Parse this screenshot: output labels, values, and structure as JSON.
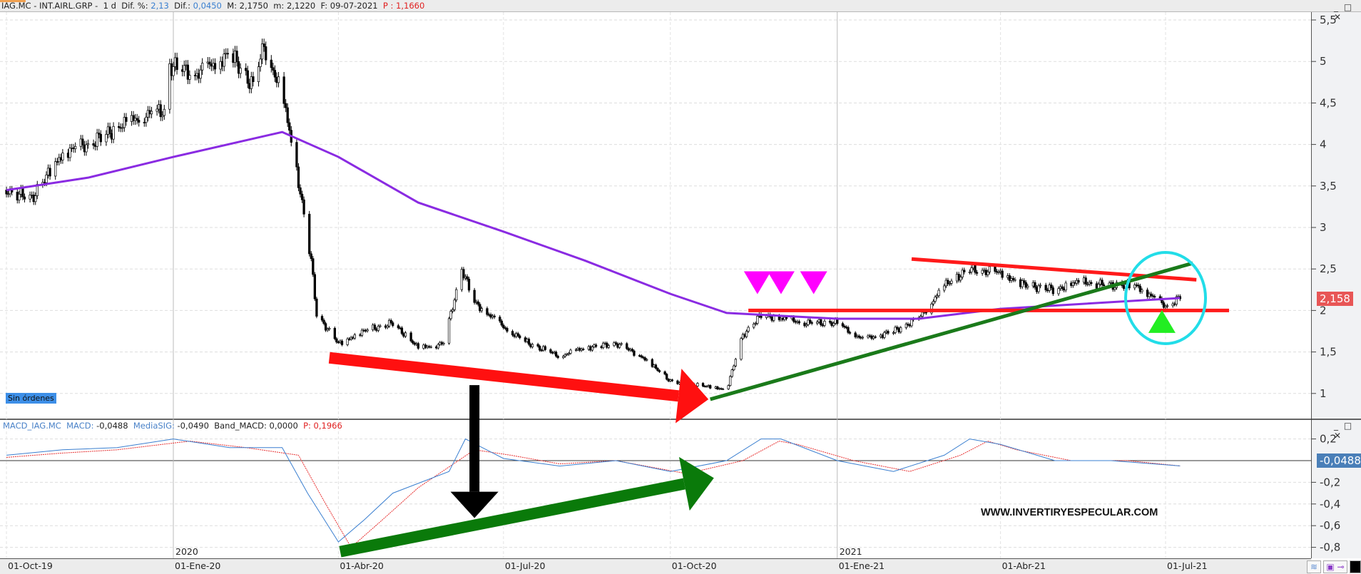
{
  "header": {
    "symbol": "IAG.MC - INT.AIRL.GRP -",
    "period": "1 d",
    "dif_pct_label": "Dif. %:",
    "dif_pct": "2,13",
    "dif_label": "Dif.:",
    "dif": "0,0450",
    "max_label": "M:",
    "max": "2,1750",
    "min_label": "m:",
    "min": "2,1220",
    "date_label": "F:",
    "date": "09-07-2021",
    "p_label": "P :",
    "p": "1,1660"
  },
  "price_badge": "2,158",
  "macd_badge": "-0,0488",
  "orders_button": "Sin órdenes",
  "watermark": "WWW.INVERTIRYESPECULAR.COM",
  "macd_header": {
    "name": "MACD_IAG.MC",
    "macd_label": "MACD:",
    "macd": "-0,0488",
    "sig_label": "MediaSIG:",
    "sig": "-0,0490",
    "band_label": "Band_MACD:",
    "band": "0,0000",
    "p_label": "P:",
    "p": "0,1966"
  },
  "window_controls": "_ □ ✕",
  "colors": {
    "ma": "#8a2be2",
    "macd": "#3a7fd0",
    "signal": "#e83030",
    "support": "#1a7a1a",
    "resistance": "#ff1a1a",
    "highlight": "#22dde8",
    "pattern": "#ff00ff",
    "buy": "#22ee22"
  },
  "chart_data": [
    {
      "type": "candlestick",
      "panel": "price",
      "ylim": [
        0.75,
        5.6
      ],
      "yticks": [
        "5,5",
        "5",
        "4,5",
        "4",
        "3,5",
        "3",
        "2,5",
        "2",
        "1,5",
        "1"
      ],
      "ytick_values": [
        5.5,
        5,
        4.5,
        4,
        3.5,
        3,
        2.5,
        2,
        1.5,
        1
      ],
      "close": [
        [
          "2019-10-01",
          3.45
        ],
        [
          "2019-10-15",
          3.35
        ],
        [
          "2019-11-01",
          3.9
        ],
        [
          "2019-11-15",
          4.0
        ],
        [
          "2019-12-01",
          4.2
        ],
        [
          "2019-12-15",
          4.35
        ],
        [
          "2019-12-27",
          4.4
        ],
        [
          "2019-12-30",
          4.95
        ],
        [
          "2020-01-15",
          4.85
        ],
        [
          "2020-02-01",
          5.1
        ],
        [
          "2020-02-14",
          4.7
        ],
        [
          "2020-02-20",
          5.2
        ],
        [
          "2020-03-01",
          4.6
        ],
        [
          "2020-03-06",
          4.05
        ],
        [
          "2020-03-12",
          3.3
        ],
        [
          "2020-03-17",
          2.6
        ],
        [
          "2020-03-20",
          1.95
        ],
        [
          "2020-04-01",
          1.6
        ],
        [
          "2020-04-15",
          1.75
        ],
        [
          "2020-05-01",
          1.85
        ],
        [
          "2020-05-15",
          1.55
        ],
        [
          "2020-05-29",
          1.6
        ],
        [
          "2020-06-08",
          2.5
        ],
        [
          "2020-06-15",
          2.1
        ],
        [
          "2020-07-01",
          1.8
        ],
        [
          "2020-07-15",
          1.6
        ],
        [
          "2020-08-01",
          1.45
        ],
        [
          "2020-08-15",
          1.55
        ],
        [
          "2020-09-01",
          1.6
        ],
        [
          "2020-09-15",
          1.45
        ],
        [
          "2020-10-01",
          1.15
        ],
        [
          "2020-10-15",
          1.1
        ],
        [
          "2020-11-01",
          1.05
        ],
        [
          "2020-11-10",
          1.7
        ],
        [
          "2020-11-20",
          1.95
        ],
        [
          "2020-12-01",
          1.9
        ],
        [
          "2020-12-15",
          1.85
        ],
        [
          "2021-01-01",
          1.85
        ],
        [
          "2021-01-15",
          1.65
        ],
        [
          "2021-02-01",
          1.75
        ],
        [
          "2021-02-15",
          1.9
        ],
        [
          "2021-03-01",
          2.3
        ],
        [
          "2021-03-15",
          2.5
        ],
        [
          "2021-04-01",
          2.45
        ],
        [
          "2021-04-15",
          2.3
        ],
        [
          "2021-05-01",
          2.25
        ],
        [
          "2021-05-15",
          2.35
        ],
        [
          "2021-06-01",
          2.3
        ],
        [
          "2021-06-15",
          2.3
        ],
        [
          "2021-07-01",
          2.05
        ],
        [
          "2021-07-09",
          2.158
        ]
      ],
      "ma": [
        [
          "2019-10-01",
          3.45
        ],
        [
          "2019-11-15",
          3.6
        ],
        [
          "2020-01-01",
          3.85
        ],
        [
          "2020-03-01",
          4.15
        ],
        [
          "2020-04-01",
          3.85
        ],
        [
          "2020-05-15",
          3.3
        ],
        [
          "2020-07-01",
          2.95
        ],
        [
          "2020-08-15",
          2.6
        ],
        [
          "2020-10-01",
          2.2
        ],
        [
          "2020-11-01",
          1.97
        ],
        [
          "2021-01-01",
          1.9
        ],
        [
          "2021-02-15",
          1.9
        ],
        [
          "2021-04-01",
          2.02
        ],
        [
          "2021-07-09",
          2.15
        ]
      ],
      "annotations": {
        "red_arrow": [
          [
            "2020-03-27",
            1.43
          ],
          [
            "2020-10-22",
            0.93
          ]
        ],
        "support_line": [
          [
            "2020-10-23",
            0.93
          ],
          [
            "2021-07-16",
            2.57
          ]
        ],
        "resistance_line": [
          [
            "2021-02-11",
            2.62
          ],
          [
            "2021-07-18",
            2.37
          ]
        ],
        "level_line": [
          [
            "2020-11-13",
            2.0
          ],
          [
            "2021-08-05",
            2.0
          ]
        ],
        "pattern_markers": [
          [
            "2020-11-18",
            2.3
          ],
          [
            "2020-12-01",
            2.3
          ],
          [
            "2020-12-19",
            2.3
          ]
        ],
        "buy_marker": [
          "2021-06-29",
          1.85
        ],
        "highlight_circle": [
          "2021-07-01",
          2.15
        ]
      }
    },
    {
      "type": "line",
      "panel": "macd",
      "ylim": [
        -0.9,
        0.3
      ],
      "yticks": [
        "0,2",
        "-0,2",
        "-0,4",
        "-0,6",
        "-0,8"
      ],
      "ytick_values": [
        0.2,
        -0.2,
        -0.4,
        -0.6,
        -0.8
      ],
      "series": [
        {
          "name": "MACD",
          "values": [
            [
              "2019-10-01",
              0.05
            ],
            [
              "2019-11-01",
              0.1
            ],
            [
              "2019-12-01",
              0.12
            ],
            [
              "2020-01-01",
              0.2
            ],
            [
              "2020-02-01",
              0.12
            ],
            [
              "2020-03-01",
              0.12
            ],
            [
              "2020-03-15",
              -0.3
            ],
            [
              "2020-04-01",
              -0.75
            ],
            [
              "2020-04-15",
              -0.55
            ],
            [
              "2020-05-01",
              -0.3
            ],
            [
              "2020-06-01",
              -0.1
            ],
            [
              "2020-06-10",
              0.2
            ],
            [
              "2020-07-01",
              0.02
            ],
            [
              "2020-08-01",
              -0.05
            ],
            [
              "2020-09-01",
              0.0
            ],
            [
              "2020-10-01",
              -0.1
            ],
            [
              "2020-11-01",
              0.0
            ],
            [
              "2020-11-20",
              0.2
            ],
            [
              "2020-12-01",
              0.2
            ],
            [
              "2021-01-01",
              0.0
            ],
            [
              "2021-02-01",
              -0.1
            ],
            [
              "2021-03-01",
              0.05
            ],
            [
              "2021-03-15",
              0.2
            ],
            [
              "2021-04-01",
              0.15
            ],
            [
              "2021-05-01",
              0.0
            ],
            [
              "2021-06-01",
              0.0
            ],
            [
              "2021-07-09",
              -0.0488
            ]
          ]
        },
        {
          "name": "MediaSIG",
          "values": [
            [
              "2019-10-01",
              0.03
            ],
            [
              "2019-11-01",
              0.07
            ],
            [
              "2019-12-01",
              0.1
            ],
            [
              "2020-01-10",
              0.18
            ],
            [
              "2020-02-10",
              0.12
            ],
            [
              "2020-03-10",
              0.05
            ],
            [
              "2020-03-25",
              -0.4
            ],
            [
              "2020-04-08",
              -0.8
            ],
            [
              "2020-04-25",
              -0.55
            ],
            [
              "2020-05-15",
              -0.25
            ],
            [
              "2020-06-15",
              0.1
            ],
            [
              "2020-07-05",
              0.05
            ],
            [
              "2020-08-01",
              -0.03
            ],
            [
              "2020-09-01",
              0.0
            ],
            [
              "2020-10-10",
              -0.12
            ],
            [
              "2020-11-10",
              0.0
            ],
            [
              "2020-11-30",
              0.18
            ],
            [
              "2020-12-10",
              0.15
            ],
            [
              "2021-01-10",
              0.0
            ],
            [
              "2021-02-10",
              -0.1
            ],
            [
              "2021-03-10",
              0.05
            ],
            [
              "2021-03-25",
              0.18
            ],
            [
              "2021-04-10",
              0.1
            ],
            [
              "2021-05-10",
              0.0
            ],
            [
              "2021-06-10",
              0.0
            ],
            [
              "2021-07-09",
              -0.049
            ]
          ]
        }
      ],
      "annotations": {
        "green_arrow": [
          [
            "2020-04-02",
            -0.84
          ],
          [
            "2020-10-25",
            -0.16
          ]
        ]
      }
    }
  ],
  "cross_annotations": {
    "black_arrow": [
      [
        "2020-06-15",
        1.1
      ],
      [
        "2020-06-15",
        -0.53
      ]
    ]
  },
  "x_axis": {
    "years": [
      "2020",
      "2021"
    ],
    "labels": [
      "01-Oct-19",
      "01-Ene-20",
      "01-Abr-20",
      "01-Jul-20",
      "01-Oct-20",
      "01-Ene-21",
      "01-Abr-21",
      "01-Jul-21"
    ]
  }
}
